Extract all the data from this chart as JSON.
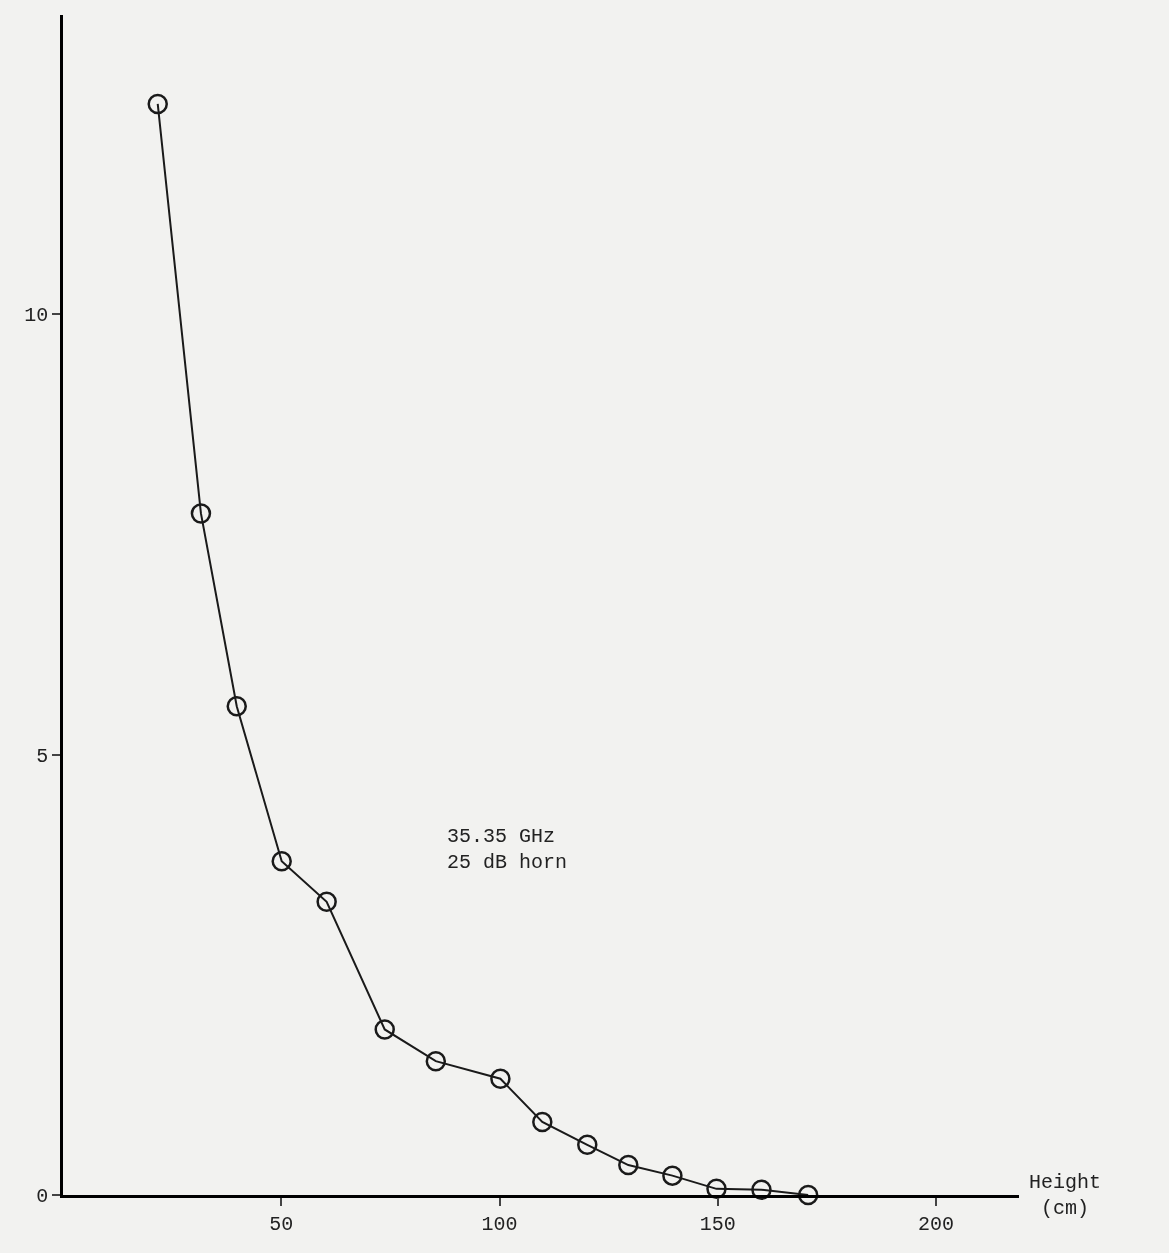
{
  "chart_data": {
    "type": "line",
    "xlabel": "Height\n(cm)",
    "annotations": [
      "35.35 GHz\n25 dB horn"
    ],
    "x": [
      21.7,
      31.6,
      39.8,
      50.1,
      60.4,
      73.7,
      85.4,
      100.2,
      109.8,
      120.1,
      129.5,
      139.6,
      149.7,
      160,
      170.7
    ],
    "series": [
      {
        "color": "#1a1a1a",
        "values": [
          12.39,
          7.74,
          5.55,
          3.79,
          3.33,
          1.88,
          1.52,
          1.32,
          0.83,
          0.57,
          0.34,
          0.22,
          0.07,
          0.06,
          0
        ]
      }
    ],
    "xlim": [
      0,
      219
    ],
    "ylim": [
      0,
      13.4
    ],
    "xticks": [
      50,
      100,
      150,
      200
    ],
    "yticks": [
      0,
      5,
      10
    ],
    "marker": "circle",
    "line_style": "solid",
    "grid": false,
    "legend": false
  }
}
